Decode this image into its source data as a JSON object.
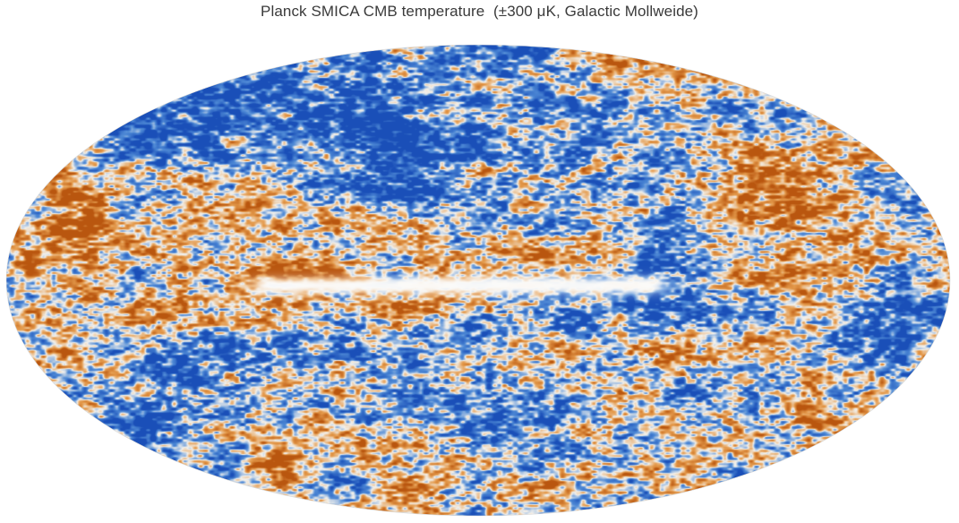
{
  "title": "Planck SMICA CMB temperature  (±300 μK, Galactic Mollweide)",
  "map": {
    "projection": "Mollweide",
    "coordinate_system": "Galactic",
    "quantity": "CMB temperature",
    "component_separation": "SMICA",
    "mission": "Planck",
    "color_range_uK": [
      -300,
      300
    ],
    "colormap": {
      "cold": "#1a4fb8",
      "cool": "#4f8ad6",
      "neutral": "#f3f1ec",
      "warm": "#e49a4c",
      "hot": "#b9560f"
    },
    "features": {
      "galactic_plane_mask": "bright inpainted band along the equator",
      "large_cold_region_center": "south of the galactic centre"
    }
  }
}
